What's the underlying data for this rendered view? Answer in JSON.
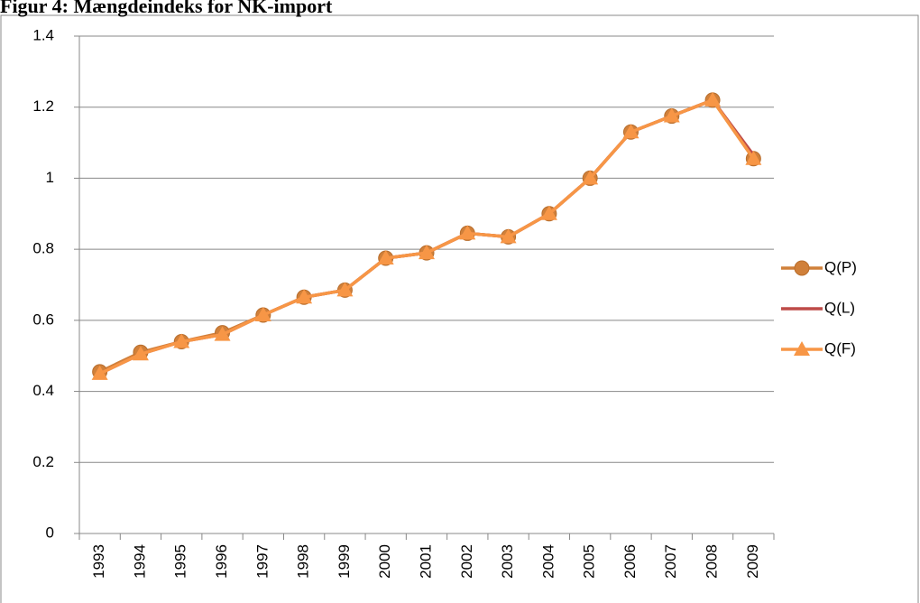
{
  "chart_data": {
    "type": "line",
    "title": "Figur 4: Mængdeindeks for NK-import",
    "categories": [
      "1993",
      "1994",
      "1995",
      "1996",
      "1997",
      "1998",
      "1999",
      "2000",
      "2001",
      "2002",
      "2003",
      "2004",
      "2005",
      "2006",
      "2007",
      "2008",
      "2009"
    ],
    "series": [
      {
        "name": "Q(P)",
        "color": "#d0803a",
        "marker": "circle",
        "values": [
          0.455,
          0.51,
          0.54,
          0.565,
          0.615,
          0.665,
          0.685,
          0.775,
          0.79,
          0.845,
          0.835,
          0.9,
          1.0,
          1.13,
          1.175,
          1.22,
          1.055
        ]
      },
      {
        "name": "Q(L)",
        "color": "#be4b48",
        "marker": "none",
        "values": [
          0.45,
          0.505,
          0.54,
          0.56,
          0.615,
          0.665,
          0.685,
          0.775,
          0.79,
          0.845,
          0.835,
          0.9,
          1.0,
          1.13,
          1.175,
          1.22,
          1.065
        ]
      },
      {
        "name": "Q(F)",
        "color": "#f79646",
        "marker": "triangle",
        "values": [
          0.45,
          0.505,
          0.54,
          0.56,
          0.615,
          0.665,
          0.685,
          0.775,
          0.79,
          0.845,
          0.835,
          0.9,
          1.0,
          1.13,
          1.175,
          1.22,
          1.055
        ]
      }
    ],
    "ylim": [
      0,
      1.4
    ],
    "yticks": [
      0,
      {
        "value": 0.2,
        "label": "0.2"
      },
      {
        "value": 0.4,
        "label": "0.4"
      },
      {
        "value": 0.6,
        "label": "0.6"
      },
      {
        "value": 0.8,
        "label": "0.8"
      },
      1,
      {
        "value": 1.2,
        "label": "1.2"
      },
      {
        "value": 1.4,
        "label": "1.4"
      }
    ],
    "grid": true,
    "legend": "right"
  }
}
